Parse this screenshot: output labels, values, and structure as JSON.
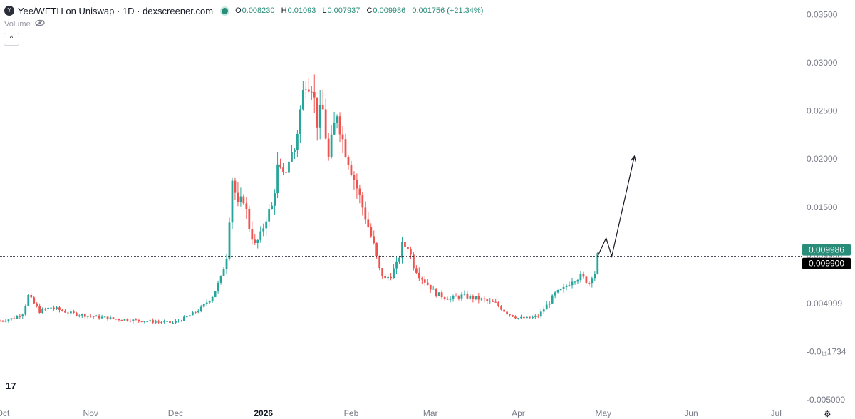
{
  "header": {
    "logo_glyph": "Y",
    "symbol_text": "Yee/WETH on Uniswap · 1D · dexscreener.com",
    "ohlc": [
      {
        "key": "O",
        "value": "0.008230"
      },
      {
        "key": "H",
        "value": "0.01093"
      },
      {
        "key": "L",
        "value": "0.007937"
      },
      {
        "key": "C",
        "value": "0.009986"
      },
      {
        "key": "",
        "value": "0.001756 (+21.34%)"
      }
    ],
    "volume_label": "Volume",
    "collapse_glyph": "^"
  },
  "footer": {
    "tv_logo": "17",
    "settings_glyph": "⚙"
  },
  "chart_data": {
    "type": "candlestick",
    "title": "Yee/WETH on Uniswap · 1D · dexscreener.com",
    "x_axis": {
      "tick_labels": [
        "Oct",
        "Nov",
        "Dec",
        "2026",
        "Feb",
        "Mar",
        "Apr",
        "May",
        "Jun",
        "Jul"
      ],
      "tick_dates": [
        "2025-10-01",
        "2025-11-01",
        "2025-12-01",
        "2026-01-01",
        "2026-02-01",
        "2026-03-01",
        "2026-04-01",
        "2026-05-01",
        "2026-06-01",
        "2026-07-01"
      ],
      "range": [
        "2025-09-30",
        "2026-07-10"
      ]
    },
    "y_axis": {
      "tick_labels": [
        "0.03500",
        "0.03000",
        "0.02500",
        "0.02000",
        "0.01500",
        "0.009986",
        "0.004999",
        "-0.0₁₁1734",
        "-0.005000"
      ],
      "tick_values": [
        0.035,
        0.03,
        0.025,
        0.02,
        0.015,
        0.01,
        0.005,
        0.0,
        -0.005
      ],
      "range": [
        -0.0055,
        0.0365
      ]
    },
    "price_labels": [
      {
        "value": 0.009986,
        "label": "0.009986",
        "color": "#2a8d79"
      },
      {
        "value": 0.0099,
        "label": "0.009900",
        "color": "#000000"
      }
    ],
    "horizontal_line": {
      "value": 0.0099,
      "style": "dotted",
      "color": "#131722"
    },
    "colors": {
      "up": "#26a69a",
      "down": "#ef5350",
      "grid": "#f0f3fa",
      "axis_text": "#787b86"
    },
    "grid": false,
    "candles_anchor": [
      [
        "2025-09-30",
        0.0032
      ],
      [
        "2025-10-05",
        0.0035
      ],
      [
        "2025-10-08",
        0.004
      ],
      [
        "2025-10-10",
        0.0058
      ],
      [
        "2025-10-14",
        0.0042
      ],
      [
        "2025-10-18",
        0.0046
      ],
      [
        "2025-10-25",
        0.004
      ],
      [
        "2025-11-01",
        0.0037
      ],
      [
        "2025-11-10",
        0.0034
      ],
      [
        "2025-11-20",
        0.0032
      ],
      [
        "2025-11-30",
        0.003
      ],
      [
        "2025-12-05",
        0.0036
      ],
      [
        "2025-12-10",
        0.0045
      ],
      [
        "2025-12-14",
        0.0058
      ],
      [
        "2025-12-17",
        0.0076
      ],
      [
        "2025-12-19",
        0.01
      ],
      [
        "2025-12-21",
        0.018
      ],
      [
        "2025-12-23",
        0.015
      ],
      [
        "2025-12-25",
        0.016
      ],
      [
        "2025-12-27",
        0.013
      ],
      [
        "2025-12-29",
        0.011
      ],
      [
        "2025-12-31",
        0.012
      ],
      [
        "2026-01-02",
        0.014
      ],
      [
        "2026-01-04",
        0.015
      ],
      [
        "2026-01-06",
        0.019
      ],
      [
        "2026-01-08",
        0.018
      ],
      [
        "2026-01-10",
        0.02
      ],
      [
        "2026-01-12",
        0.021
      ],
      [
        "2026-01-14",
        0.025
      ],
      [
        "2026-01-16",
        0.0285
      ],
      [
        "2026-01-18",
        0.028
      ],
      [
        "2026-01-20",
        0.024
      ],
      [
        "2026-01-22",
        0.025
      ],
      [
        "2026-01-24",
        0.02
      ],
      [
        "2026-01-27",
        0.025
      ],
      [
        "2026-01-29",
        0.022
      ],
      [
        "2026-02-01",
        0.019
      ],
      [
        "2026-02-03",
        0.017
      ],
      [
        "2026-02-05",
        0.015
      ],
      [
        "2026-02-07",
        0.013
      ],
      [
        "2026-02-09",
        0.011
      ],
      [
        "2026-02-11",
        0.0085
      ],
      [
        "2026-02-13",
        0.0075
      ],
      [
        "2026-02-15",
        0.008
      ],
      [
        "2026-02-17",
        0.009
      ],
      [
        "2026-02-19",
        0.011
      ],
      [
        "2026-02-21",
        0.011
      ],
      [
        "2026-02-23",
        0.009
      ],
      [
        "2026-02-25",
        0.008
      ],
      [
        "2026-02-28",
        0.007
      ],
      [
        "2026-03-03",
        0.006
      ],
      [
        "2026-03-08",
        0.0055
      ],
      [
        "2026-03-12",
        0.0058
      ],
      [
        "2026-03-18",
        0.0055
      ],
      [
        "2026-03-24",
        0.005
      ],
      [
        "2026-03-28",
        0.004
      ],
      [
        "2026-04-01",
        0.0035
      ],
      [
        "2026-04-05",
        0.0035
      ],
      [
        "2026-04-08",
        0.0037
      ],
      [
        "2026-04-11",
        0.0048
      ],
      [
        "2026-04-14",
        0.006
      ],
      [
        "2026-04-17",
        0.0065
      ],
      [
        "2026-04-20",
        0.0075
      ],
      [
        "2026-04-23",
        0.0078
      ],
      [
        "2026-04-26",
        0.0072
      ],
      [
        "2026-04-27",
        0.008
      ],
      [
        "2026-04-28",
        0.0082
      ],
      [
        "2026-04-29",
        0.0099
      ]
    ],
    "annotation_path": [
      [
        "2026-04-29",
        0.0099
      ],
      [
        "2026-05-02",
        0.0118
      ],
      [
        "2026-05-04",
        0.0099
      ],
      [
        "2026-05-12",
        0.0203
      ]
    ]
  }
}
